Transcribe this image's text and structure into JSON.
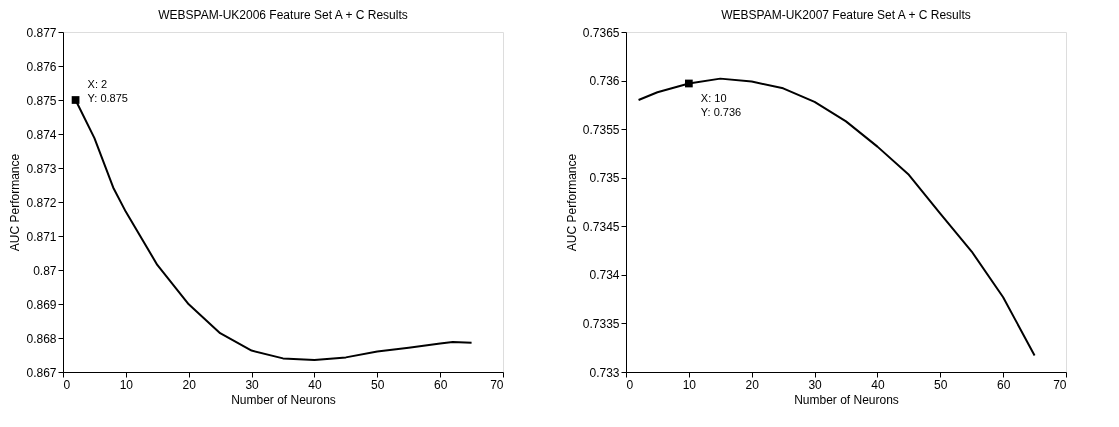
{
  "chart_data": [
    {
      "type": "line",
      "title": "WEBSPAM-UK2006 Feature Set A + C Results",
      "xlabel": "Number of Neurons",
      "ylabel": "AUC Performance",
      "x": [
        2,
        5,
        8,
        10,
        15,
        20,
        25,
        30,
        35,
        40,
        45,
        50,
        55,
        60,
        62,
        65
      ],
      "series": [
        {
          "color": "#000000",
          "values": [
            0.875,
            0.87388,
            0.87242,
            0.87171,
            0.87015,
            0.86899,
            0.86814,
            0.86763,
            0.8674,
            0.86735,
            0.86743,
            0.8676,
            0.86771,
            0.86784,
            0.86788,
            0.86786
          ]
        }
      ],
      "xlim": [
        0,
        70
      ],
      "xticks": [
        0,
        10,
        20,
        30,
        40,
        50,
        60,
        70
      ],
      "ylim": [
        0.867,
        0.877
      ],
      "yticks": [
        0.867,
        0.868,
        0.869,
        0.87,
        0.871,
        0.872,
        0.873,
        0.874,
        0.875,
        0.876,
        0.877
      ],
      "grid": false,
      "marker": "none",
      "line_style": "solid",
      "annotations": [
        {
          "text": "X: 2\nY: 0.875",
          "x": 2,
          "y": 0.875
        }
      ]
    },
    {
      "type": "line",
      "title": "WEBSPAM-UK2007 Feature Set A + C Results",
      "xlabel": "Number of Neurons",
      "ylabel": "AUC Performance",
      "x": [
        2,
        5,
        10,
        15,
        20,
        25,
        30,
        35,
        40,
        45,
        50,
        55,
        60,
        65
      ],
      "series": [
        {
          "color": "#000000",
          "values": [
            0.7358,
            0.73588,
            0.73597,
            0.73602,
            0.73599,
            0.73592,
            0.73578,
            0.73558,
            0.73532,
            0.73503,
            0.73463,
            0.73424,
            0.73377,
            0.73317
          ]
        }
      ],
      "xlim": [
        0,
        70
      ],
      "xticks": [
        0,
        10,
        20,
        30,
        40,
        50,
        60,
        70
      ],
      "ylim": [
        0.733,
        0.7365
      ],
      "yticks": [
        0.733,
        0.7335,
        0.734,
        0.7345,
        0.735,
        0.7355,
        0.736,
        0.7365
      ],
      "grid": false,
      "marker": "none",
      "line_style": "solid",
      "annotations": [
        {
          "text": "X: 10\nY: 0.736",
          "x": 10,
          "y": 0.73597
        }
      ]
    }
  ]
}
